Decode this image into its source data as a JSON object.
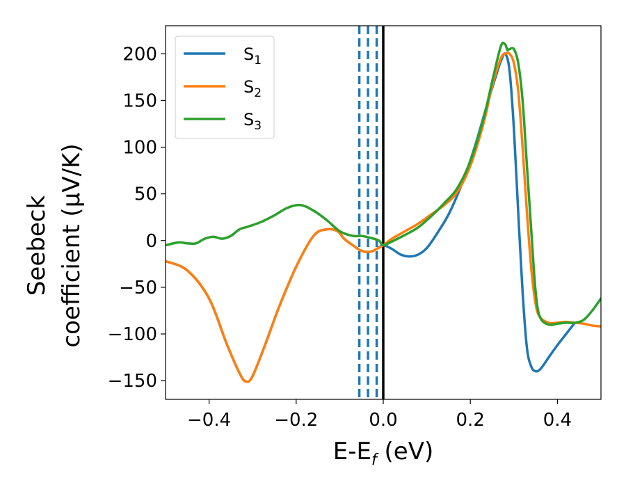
{
  "chart_data": {
    "type": "line",
    "xlabel": "E-E",
    "xlabel_sub": "f",
    "xlabel_unit": " (eV)",
    "ylabel_line1": "Seebeck",
    "ylabel_line2": "coefficient  (μV/K)",
    "xlim": [
      -0.5,
      0.5
    ],
    "ylim": [
      -170,
      230
    ],
    "xticks": [
      -0.4,
      -0.2,
      0.0,
      0.2,
      0.4
    ],
    "xtick_labels": [
      "−0.4",
      "−0.2",
      "0.0",
      "0.2",
      "0.4"
    ],
    "yticks": [
      -150,
      -100,
      -50,
      0,
      50,
      100,
      150,
      200
    ],
    "ytick_labels": [
      "−150",
      "−100",
      "−50",
      "0",
      "50",
      "100",
      "150",
      "200"
    ],
    "grid": false,
    "legend_position": "top-left",
    "colors": {
      "S1": "#1f77b4",
      "S2": "#ff7f0e",
      "S3": "#2ca02c"
    },
    "vlines_dashed": [
      -0.055,
      -0.035,
      -0.015
    ],
    "vline_solid": 0.0,
    "series": [
      {
        "name": "S",
        "sub": "1",
        "color": "#1f77b4",
        "x": [
          -0.5,
          -0.45,
          -0.4,
          -0.36,
          -0.33,
          -0.315,
          -0.3,
          -0.27,
          -0.24,
          -0.2,
          -0.16,
          -0.13,
          -0.105,
          -0.09,
          -0.07,
          -0.05,
          -0.03,
          -0.015,
          0.0,
          0.02,
          0.04,
          0.06,
          0.08,
          0.1,
          0.12,
          0.15,
          0.18,
          0.21,
          0.24,
          0.26,
          0.27,
          0.28,
          0.29,
          0.3,
          0.31,
          0.32,
          0.33,
          0.34,
          0.35,
          0.36,
          0.37,
          0.38,
          0.4,
          0.42,
          0.44
        ],
        "y": [
          -22,
          -32,
          -62,
          -110,
          -142,
          -151,
          -145,
          -110,
          -72,
          -28,
          5,
          12,
          10,
          2,
          -5,
          -11,
          -12,
          -9,
          -5,
          -9,
          -15,
          -17,
          -15,
          -8,
          5,
          28,
          60,
          100,
          148,
          178,
          192,
          200,
          182,
          120,
          30,
          -55,
          -115,
          -135,
          -140,
          -138,
          -132,
          -125,
          -112,
          -100,
          -88
        ]
      },
      {
        "name": "S",
        "sub": "2",
        "color": "#ff7f0e",
        "x": [
          -0.5,
          -0.45,
          -0.4,
          -0.36,
          -0.33,
          -0.315,
          -0.3,
          -0.27,
          -0.24,
          -0.2,
          -0.16,
          -0.13,
          -0.105,
          -0.09,
          -0.07,
          -0.05,
          -0.03,
          -0.015,
          0.0,
          0.02,
          0.05,
          0.08,
          0.11,
          0.14,
          0.17,
          0.2,
          0.23,
          0.25,
          0.27,
          0.28,
          0.29,
          0.3,
          0.31,
          0.32,
          0.33,
          0.34,
          0.35,
          0.36,
          0.38,
          0.4,
          0.42,
          0.44,
          0.46,
          0.48,
          0.5
        ],
        "y": [
          -22,
          -32,
          -62,
          -110,
          -142,
          -151,
          -145,
          -110,
          -72,
          -28,
          5,
          12,
          10,
          2,
          -5,
          -11,
          -12,
          -9,
          -5,
          2,
          10,
          18,
          28,
          38,
          52,
          80,
          125,
          165,
          195,
          200,
          200,
          190,
          160,
          100,
          30,
          -30,
          -68,
          -82,
          -88,
          -88,
          -87,
          -88,
          -89,
          -91,
          -92
        ]
      },
      {
        "name": "S",
        "sub": "3",
        "color": "#2ca02c",
        "x": [
          -0.5,
          -0.47,
          -0.45,
          -0.43,
          -0.41,
          -0.39,
          -0.37,
          -0.35,
          -0.33,
          -0.31,
          -0.28,
          -0.25,
          -0.22,
          -0.19,
          -0.16,
          -0.13,
          -0.1,
          -0.07,
          -0.05,
          -0.03,
          -0.01,
          0.0,
          0.02,
          0.05,
          0.08,
          0.11,
          0.14,
          0.17,
          0.2,
          0.23,
          0.25,
          0.27,
          0.28,
          0.285,
          0.29,
          0.3,
          0.31,
          0.32,
          0.33,
          0.34,
          0.35,
          0.36,
          0.38,
          0.4,
          0.42,
          0.44,
          0.46,
          0.48,
          0.5
        ],
        "y": [
          -5,
          -2,
          -3,
          -3,
          2,
          4,
          2,
          5,
          12,
          15,
          20,
          27,
          35,
          38,
          32,
          22,
          10,
          5,
          5,
          3,
          0,
          -5,
          -1,
          6,
          14,
          26,
          40,
          56,
          85,
          130,
          170,
          208,
          210,
          204,
          205,
          205,
          190,
          150,
          80,
          10,
          -55,
          -82,
          -90,
          -89,
          -88,
          -88,
          -85,
          -75,
          -62
        ]
      }
    ]
  }
}
